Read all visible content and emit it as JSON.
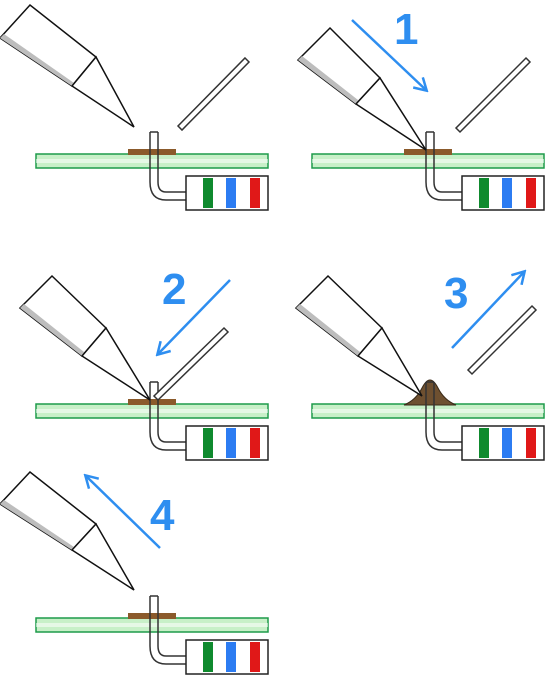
{
  "colors": {
    "arrow": "#2e8ef0",
    "board_fill": "#c8f0c8",
    "board_stroke": "#1e9b4a",
    "pad": "#8b5a2b",
    "solder": "#6e5030",
    "tool_outline": "#111111",
    "tool_shade": "#bdbdbd",
    "band_green": "#0f8a2e",
    "band_blue": "#2c7cf2",
    "band_red": "#e01818"
  },
  "icons": {
    "iron": "soldering-iron-icon",
    "wire": "solder-wire-icon",
    "resistor": "resistor-icon",
    "arrow": "arrow-icon"
  },
  "panels": [
    {
      "step": "",
      "arrow": "none"
    },
    {
      "step": "1",
      "arrow": "down-right"
    },
    {
      "step": "2",
      "arrow": "down-left"
    },
    {
      "step": "3",
      "arrow": "up-right"
    },
    {
      "step": "4",
      "arrow": "up-left"
    }
  ]
}
